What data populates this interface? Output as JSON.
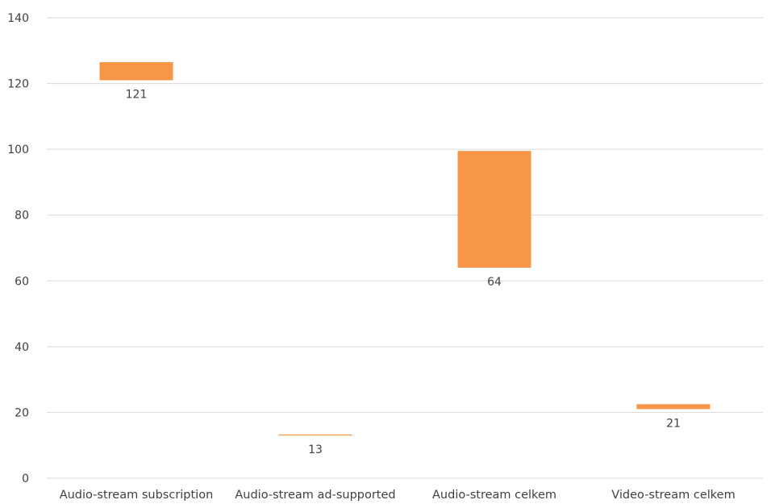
{
  "chart_data": {
    "type": "bar",
    "subtype": "floating",
    "title": "",
    "xlabel": "",
    "ylabel": "",
    "ylim": [
      0,
      140
    ],
    "yticks": [
      0,
      20,
      40,
      60,
      80,
      100,
      120,
      140
    ],
    "grid": true,
    "legend": "none",
    "bar_color": "#F79646",
    "categories": [
      "Audio-stream subscription",
      "Audio-stream ad-supported",
      "Audio-stream celkem",
      "Video-stream celkem"
    ],
    "bars": [
      {
        "low": 121,
        "high": 126.5,
        "label": "121"
      },
      {
        "low": 13,
        "high": 13.3,
        "label": "13"
      },
      {
        "low": 64,
        "high": 99.5,
        "label": "64"
      },
      {
        "low": 21,
        "high": 22.5,
        "label": "21"
      }
    ]
  }
}
